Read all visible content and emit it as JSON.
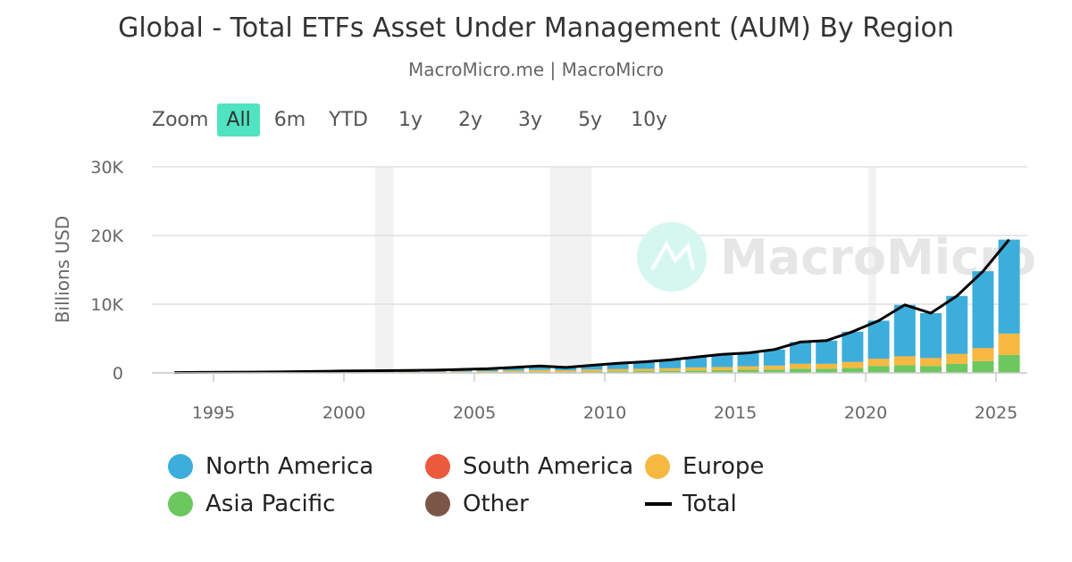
{
  "title": "Global - Total ETFs Asset Under Management (AUM) By Region",
  "subtitle": "MacroMicro.me | MacroMicro",
  "watermark": "MacroMicro",
  "zoom": {
    "label": "Zoom",
    "buttons": [
      "All",
      "6m",
      "YTD",
      "1y",
      "2y",
      "3y",
      "5y",
      "10y"
    ],
    "active": "All"
  },
  "chart_data": {
    "type": "bar",
    "stacked": true,
    "title": "Global - Total ETFs Asset Under Management (AUM) By Region",
    "ylabel": "Billions USD",
    "ylim": [
      0,
      30000
    ],
    "yticks": [
      0,
      10000,
      20000,
      30000
    ],
    "ytick_labels": [
      "0",
      "10K",
      "20K",
      "30K"
    ],
    "xlim": [
      1993,
      2026
    ],
    "xticks": [
      "1995",
      "2000",
      "2005",
      "2010",
      "2015",
      "2020",
      "2025"
    ],
    "grid": true,
    "legend_position": "bottom",
    "recessions": [
      [
        2001.2,
        2001.9
      ],
      [
        2007.9,
        2009.5
      ],
      [
        2020.1,
        2020.4
      ]
    ],
    "x": [
      1993,
      1994,
      1995,
      1996,
      1997,
      1998,
      1999,
      2000,
      2001,
      2002,
      2003,
      2004,
      2005,
      2006,
      2007,
      2008,
      2009,
      2010,
      2011,
      2012,
      2013,
      2014,
      2015,
      2016,
      2017,
      2018,
      2019,
      2020,
      2021,
      2022,
      2023,
      2024,
      2025
    ],
    "series": [
      {
        "name": "North America",
        "color": "#3daedb",
        "type": "bar",
        "values": [
          40,
          65,
          80,
          100,
          125,
          170,
          210,
          200,
          210,
          210,
          230,
          290,
          340,
          460,
          570,
          420,
          610,
          820,
          1000,
          1210,
          1500,
          1840,
          1920,
          2330,
          3150,
          3370,
          4390,
          5520,
          7470,
          6520,
          8420,
          11170,
          13670
        ]
      },
      {
        "name": "South America",
        "color": "#ec5a3e",
        "type": "bar",
        "values": [
          0,
          0,
          0,
          0,
          0,
          0,
          0,
          0,
          0,
          0,
          0,
          0,
          0,
          0,
          0,
          10,
          10,
          10,
          10,
          10,
          10,
          10,
          10,
          10,
          10,
          10,
          10,
          10,
          10,
          10,
          10,
          10,
          10
        ]
      },
      {
        "name": "Europe",
        "color": "#f5b942",
        "type": "bar",
        "values": [
          0,
          0,
          0,
          0,
          0,
          0,
          0,
          50,
          60,
          80,
          100,
          130,
          160,
          220,
          280,
          240,
          300,
          330,
          320,
          360,
          420,
          450,
          500,
          560,
          720,
          700,
          880,
          1050,
          1300,
          1150,
          1450,
          1900,
          3100
        ]
      },
      {
        "name": "Asia Pacific",
        "color": "#6cc75f",
        "type": "bar",
        "values": [
          10,
          15,
          20,
          20,
          25,
          30,
          40,
          50,
          50,
          60,
          70,
          80,
          100,
          120,
          150,
          130,
          180,
          220,
          250,
          300,
          350,
          380,
          450,
          480,
          600,
          600,
          700,
          1000,
          1100,
          1000,
          1300,
          1700,
          2600
        ]
      },
      {
        "name": "Other",
        "color": "#7b5648",
        "type": "bar",
        "values": [
          0,
          0,
          0,
          0,
          0,
          0,
          0,
          0,
          0,
          0,
          0,
          0,
          0,
          0,
          0,
          0,
          0,
          20,
          20,
          20,
          20,
          20,
          20,
          20,
          20,
          20,
          20,
          20,
          20,
          20,
          20,
          20,
          20
        ]
      },
      {
        "name": "Total",
        "color": "#000000",
        "type": "line",
        "values": [
          50,
          80,
          100,
          120,
          150,
          200,
          250,
          300,
          320,
          350,
          400,
          500,
          600,
          800,
          1000,
          800,
          1100,
          1400,
          1600,
          1900,
          2300,
          2700,
          2900,
          3400,
          4500,
          4700,
          6000,
          7600,
          9900,
          8700,
          11200,
          14800,
          19400
        ]
      }
    ]
  }
}
